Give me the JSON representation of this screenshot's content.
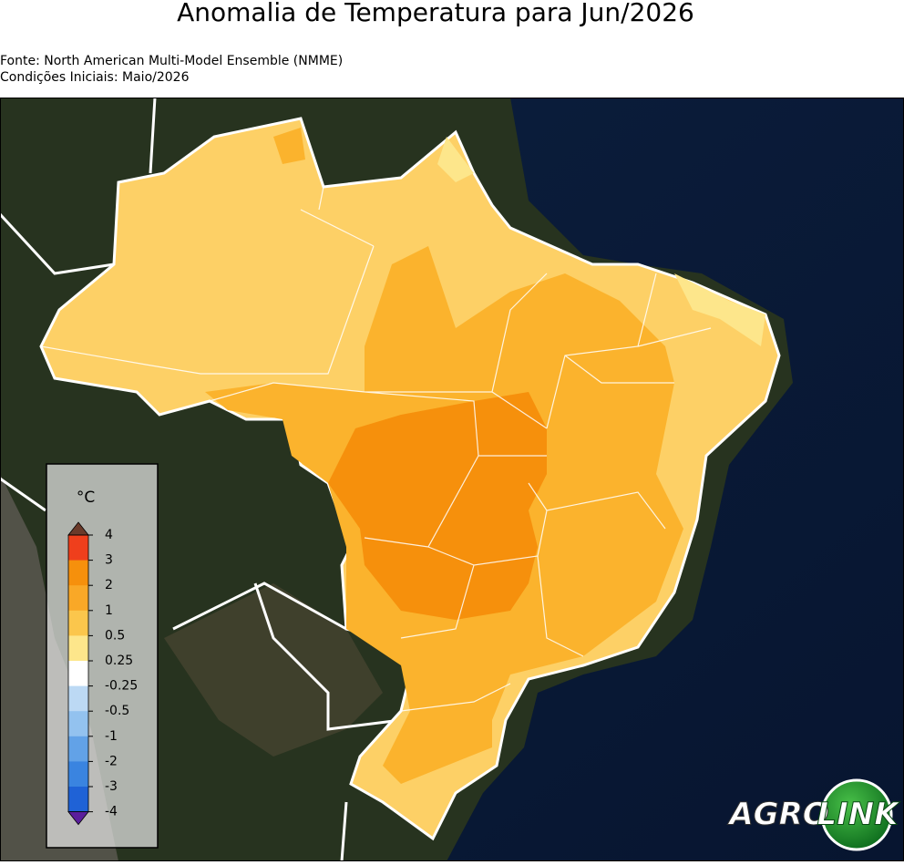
{
  "title": "Anomalia de Temperatura para Jun/2026",
  "source": "Fonte: North American Multi-Model Ensemble (NMME)",
  "initial_conditions": "Condições Iniciais: Maio/2026",
  "legend": {
    "unit": "°C",
    "ticks": [
      4,
      3,
      2,
      1,
      0.5,
      0.25,
      -0.25,
      -0.5,
      -1,
      -2,
      -3,
      -4
    ],
    "colors": [
      "#ef3f1c",
      "#f6900c",
      "#f9a827",
      "#fbc64c",
      "#fde68b",
      "#ffffff",
      "#bcd9f4",
      "#93c2ef",
      "#62a2e7",
      "#3a84e0",
      "#1f62d6"
    ],
    "over_color": "#6b3a2a",
    "under_color": "#5a1e9c"
  },
  "logo": {
    "left": "AGRO",
    "right": "LINK"
  }
}
